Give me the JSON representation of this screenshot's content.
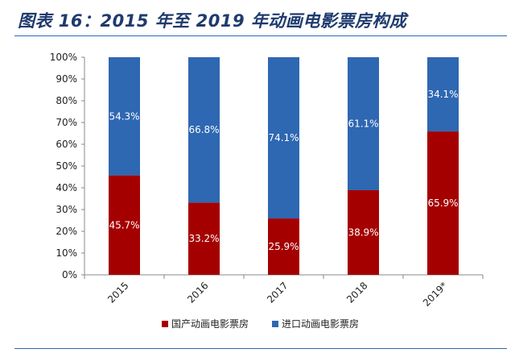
{
  "figure_title": "图表 16：2015 年至 2019 年动画电影票房构成",
  "colors": {
    "domestic": "#a50000",
    "imported": "#2e67b2",
    "accent": "#1f3b6e"
  },
  "chart_data": {
    "type": "bar",
    "stacked": true,
    "categories": [
      "2015",
      "2016",
      "2017",
      "2018",
      "2019*"
    ],
    "series": [
      {
        "name": "国产动画电影票房",
        "values": [
          45.7,
          33.2,
          25.9,
          38.9,
          65.9
        ],
        "labels": [
          "45.7%",
          "33.2%",
          "25.9%",
          "38.9%",
          "65.9%"
        ]
      },
      {
        "name": "进口动画电影票房",
        "values": [
          54.3,
          66.8,
          74.1,
          61.1,
          34.1
        ],
        "labels": [
          "54.3%",
          "66.8%",
          "74.1%",
          "61.1%",
          "34.1%"
        ]
      }
    ],
    "yticks": [
      "0%",
      "10%",
      "20%",
      "30%",
      "40%",
      "50%",
      "60%",
      "70%",
      "80%",
      "90%",
      "100%"
    ],
    "ylim": [
      0,
      100
    ],
    "grid": false,
    "legend_position": "bottom"
  }
}
